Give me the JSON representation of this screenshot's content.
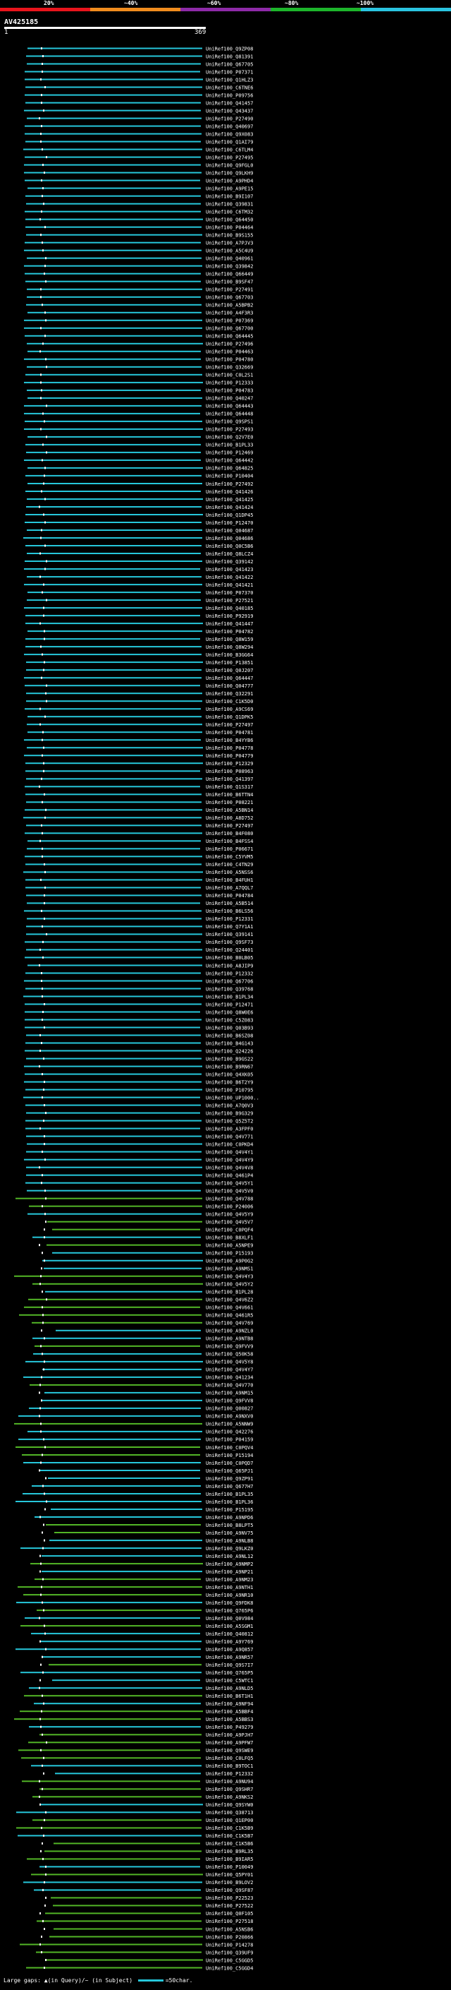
{
  "legend": {
    "labels": [
      "20%",
      "~40%",
      "~60%",
      "~80%",
      "~100%"
    ],
    "colors": [
      "#e8141c",
      "#f08c1e",
      "#8e2aa8",
      "#1db52b",
      "#2ac4e0"
    ]
  },
  "query_id": "AV425185",
  "ruler": {
    "start": "1",
    "end": "369"
  },
  "hit_colors": {
    "cyan": "#26c6da",
    "green": "#52b526",
    "blue": "#1565c0",
    "marker": "#ffffff"
  },
  "hits": [
    "UniRef100_Q9ZP08",
    "UniRef100_Q81391",
    "UniRef100_Q67705",
    "UniRef100_P07371",
    "UniRef100_Q1HLZ3",
    "UniRef100_C6TNE6",
    "UniRef100_P09756",
    "UniRef100_Q41457",
    "UniRef100_Q43437",
    "UniRef100_P27490",
    "UniRef100_Q40697",
    "UniRef100_Q9X083",
    "UniRef100_Q1AI79",
    "UniRef100_C6TLM4",
    "UniRef100_P27495",
    "UniRef100_Q9FGL0",
    "UniRef100_Q9LKH9",
    "UniRef100_A9PHD4",
    "UniRef100_A9PE15",
    "UniRef100_B9I107",
    "UniRef100_Q39831",
    "UniRef100_C6TM32",
    "UniRef100_Q64450",
    "UniRef100_P04464",
    "UniRef100_B9S155",
    "UniRef100_A7PJV3",
    "UniRef100_A5C4U9",
    "UniRef100_Q40961",
    "UniRef100_Q39842",
    "UniRef100_Q66449",
    "UniRef100_B9SF47",
    "UniRef100_P27491",
    "UniRef100_Q67703",
    "UniRef100_A5BPB2",
    "UniRef100_A4F3R3",
    "UniRef100_P07369",
    "UniRef100_Q67700",
    "UniRef100_Q64445",
    "UniRef100_P27496",
    "UniRef100_P04463",
    "UniRef100_P04780",
    "UniRef100_Q32669",
    "UniRef100_C0L2S1",
    "UniRef100_P12333",
    "UniRef100_P04783",
    "UniRef100_Q40247",
    "UniRef100_Q64443",
    "UniRef100_Q64448",
    "UniRef100_Q9SPS1",
    "UniRef100_P27493",
    "UniRef100_Q2V7E0",
    "UniRef100_B1PL33",
    "UniRef100_P12469",
    "UniRef100_Q64442",
    "UniRef100_Q64825",
    "UniRef100_P10404",
    "UniRef100_P27492",
    "UniRef100_Q41426",
    "UniRef100_Q41425",
    "UniRef100_Q41424",
    "UniRef100_Q1DP45",
    "UniRef100_P12470",
    "UniRef100_Q04687",
    "UniRef100_Q04686",
    "UniRef100_Q0C5B6",
    "UniRef100_Q8LCZ4",
    "UniRef100_Q39142",
    "UniRef100_Q41423",
    "UniRef100_Q41422",
    "UniRef100_Q41421",
    "UniRef100_P07370",
    "UniRef100_P27521",
    "UniRef100_Q40185",
    "UniRef100_P92919",
    "UniRef100_Q41447",
    "UniRef100_P04782",
    "UniRef100_Q8W159",
    "UniRef100_Q8W294",
    "UniRef100_B3GG64",
    "UniRef100_P13851",
    "UniRef100_Q0J207",
    "UniRef100_Q64447",
    "UniRef100_Q04777",
    "UniRef100_Q32291",
    "UniRef100_C1K5D0",
    "UniRef100_A9CS69",
    "UniRef100_Q1DPK5",
    "UniRef100_P27497",
    "UniRef100_P04781",
    "UniRef100_B4YYB6",
    "UniRef100_P04778",
    "UniRef100_P04779",
    "UniRef100_P12329",
    "UniRef100_P08963",
    "UniRef100_Q41397",
    "UniRef100_Q1S317",
    "UniRef100_B6TTN4",
    "UniRef100_P08221",
    "UniRef100_A5BN14",
    "UniRef100_A8D752",
    "UniRef100_P27497",
    "UniRef100_B4F080",
    "UniRef100_B4FSS4",
    "UniRef100_P06671",
    "UniRef100_C5YVM5",
    "UniRef100_C4TN29",
    "UniRef100_A5NSS6",
    "UniRef100_B4FUH1",
    "UniRef100_A7QQL7",
    "UniRef100_P04784",
    "UniRef100_A5B514",
    "UniRef100_B6LS56",
    "UniRef100_P12331",
    "UniRef100_Q7Y1A1",
    "UniRef100_Q39141",
    "UniRef100_Q9SF73",
    "UniRef100_Q24401",
    "UniRef100_B0LB05",
    "UniRef100_A8JIP9",
    "UniRef100_P12332",
    "UniRef100_Q67706",
    "UniRef100_Q39768",
    "UniRef100_B1PL34",
    "UniRef100_P12471",
    "UniRef100_Q8W0E6",
    "UniRef100_C5Z083",
    "UniRef100_Q03B93",
    "UniRef100_B6SZ08",
    "UniRef100_B4G143",
    "UniRef100_Q24226",
    "UniRef100_B9GS22",
    "UniRef100_B9RN67",
    "UniRef100_Q4XK05",
    "UniRef100_B6T2Y9",
    "UniRef100_P10795",
    "UniRef100_UP1000..",
    "UniRef100_A7Q0V3",
    "UniRef100_B9G329",
    "UniRef100_Q5Z5T2",
    "UniRef100_A3FPF0",
    "UniRef100_Q4V771",
    "UniRef100_C0PKD4",
    "UniRef100_Q4V4Y1",
    "UniRef100_Q4V4Y9",
    "UniRef100_Q4V4V8",
    "UniRef100_Q461P4",
    "UniRef100_Q4V5Y1",
    "UniRef100_Q4V5V0",
    "UniRef100_Q4V788",
    "UniRef100_P24006",
    "UniRef100_Q4V5Y9",
    "UniRef100_Q4V5V7",
    "UniRef100_C0PQF4",
    "UniRef100_B8XLF1",
    "UniRef100_A5NPE9",
    "UniRef100_P15193",
    "UniRef100_A9P0G2",
    "UniRef100_A9NMS1",
    "UniRef100_Q4V4Y3",
    "UniRef100_Q4V5Y2",
    "UniRef100_B1PL28",
    "UniRef100_Q4V6Z2",
    "UniRef100_Q4V661",
    "UniRef100_Q461R5",
    "UniRef100_Q4V769",
    "UniRef100_A9NZL0",
    "UniRef100_A9NTB8",
    "UniRef100_Q9FVV9",
    "UniRef100_Q50K58",
    "UniRef100_Q4V5Y8",
    "UniRef100_Q4V4Y7",
    "UniRef100_Q41234",
    "UniRef100_Q4V770",
    "UniRef100_A9NM15",
    "UniRef100_Q9FVV8",
    "UniRef100_Q00827",
    "UniRef100_A9NXV0",
    "UniRef100_A5NNW9",
    "UniRef100_Q42276",
    "UniRef100_P04159",
    "UniRef100_C0PQV4",
    "UniRef100_P15194",
    "UniRef100_C0PQD7",
    "UniRef100_Q65PJ1",
    "UniRef100_Q9ZP91",
    "UniRef100_Q677H7",
    "UniRef100_B1PL35",
    "UniRef100_B1PL36",
    "UniRef100_P15195",
    "UniRef100_A9NPD6",
    "UniRef100_B8LPT5",
    "UniRef100_A9NV75",
    "UniRef100_A9NLB8",
    "UniRef100_Q9LKZ0",
    "UniRef100_A9NL12",
    "UniRef100_A9NMP2",
    "UniRef100_A9NP21",
    "UniRef100_A9NM23",
    "UniRef100_A9NTH1",
    "UniRef100_A9NR10",
    "UniRef100_Q9FDK8",
    "UniRef100_Q765P6",
    "UniRef100_Q0V984",
    "UniRef100_A5SGM1",
    "UniRef100_Q40812",
    "UniRef100_A9Y769",
    "UniRef100_A9Q857",
    "UniRef100_A9NR57",
    "UniRef100_Q9S7I7",
    "UniRef100_Q765P5",
    "UniRef100_C5WTC1",
    "UniRef100_A9NLD5",
    "UniRef100_B6T1H1",
    "UniRef100_A9NF94",
    "UniRef100_A5BBF4",
    "UniRef100_A5BBS3",
    "UniRef100_P49279",
    "UniRef100_A9PJH7",
    "UniRef100_A9PFW7",
    "UniRef100_Q9SWE9",
    "UniRef100_C0LFQ5",
    "UniRef100_B9TOC1",
    "UniRef100_P12332",
    "UniRef100_A9NU94",
    "UniRef100_Q9SHR7",
    "UniRef100_A9NKS2",
    "UniRef100_Q9SYW0",
    "UniRef100_Q38713",
    "UniRef100_Q1EP00",
    "UniRef100_C1K5B9",
    "UniRef100_C1K5B7",
    "UniRef100_C1K5B6",
    "UniRef100_B9RL35",
    "UniRef100_B9IAR5",
    "UniRef100_P10049",
    "UniRef100_Q5PY01",
    "UniRef100_B9LOV2",
    "UniRef100_Q9SF87",
    "UniRef100_P22523",
    "UniRef100_P27522",
    "UniRef100_Q0F105",
    "UniRef100_P27518",
    "UniRef100_A5NSB6",
    "UniRef100_P20866",
    "UniRef100_P14278",
    "UniRef100_Q39UF9",
    "UniRef100_C5GGD5",
    "UniRef100_C5GGD4"
  ],
  "footer": {
    "text": "Large gaps: ▲(in Query)/~ (in Subject)",
    "scale": "=50char."
  }
}
